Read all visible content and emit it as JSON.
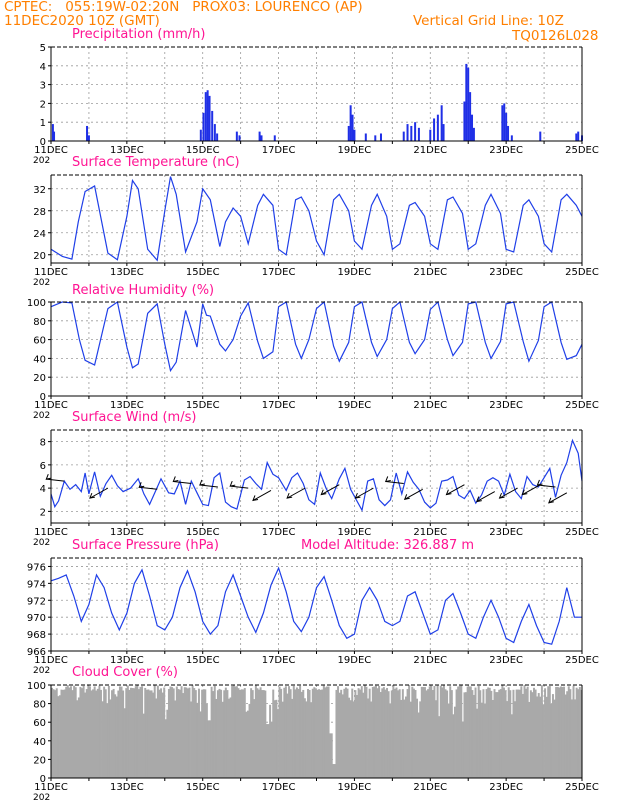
{
  "header": {
    "left_line1": "CPTEC:   055:19W-02:20N   PROX03: LOURENCO (AP)",
    "left_line2": "11DEC2020 10Z (GMT)",
    "right_line2": "Vertical Grid Line: 10Z",
    "right_line3": "TQ0126L028"
  },
  "panels": {
    "precip_title": "Precipitation (mm/h)",
    "temp_title": "Surface Temperature (nC)",
    "rh_title": "Relative Humidity (%)",
    "wind_title": "Surface Wind (m/s)",
    "pres_title": "Surface Pressure (hPa)",
    "model_altitude": "Model Altitude: 326.887 m",
    "cloud_title": "Cloud Cover (%)"
  },
  "x_axis": {
    "labels": [
      "11DEC",
      "13DEC",
      "15DEC",
      "17DEC",
      "19DEC",
      "21DEC",
      "23DEC",
      "25DEC"
    ],
    "year_fragment": "202"
  },
  "colors": {
    "line": "#1f3fe8",
    "bar": "#1f2fe6",
    "cloud": "#a9a9a9",
    "grid": "#9a9a9a",
    "title": "#ff1493",
    "header": "#ff7f00"
  },
  "chart_data": [
    {
      "type": "bar",
      "title": "Precipitation (mm/h)",
      "ylim": [
        0,
        5
      ],
      "yticks": [
        "0",
        "1",
        "2",
        "3",
        "4",
        "5"
      ],
      "x_unit": "days since 11DEC2020 10Z",
      "events": [
        [
          0.05,
          0.9
        ],
        [
          0.08,
          0.5
        ],
        [
          0.95,
          0.8
        ],
        [
          1.0,
          0.3
        ],
        [
          3.95,
          0.6
        ],
        [
          4.02,
          1.5
        ],
        [
          4.08,
          2.6
        ],
        [
          4.13,
          2.7
        ],
        [
          4.18,
          2.4
        ],
        [
          4.25,
          1.6
        ],
        [
          4.32,
          0.9
        ],
        [
          4.38,
          0.4
        ],
        [
          4.9,
          0.5
        ],
        [
          4.97,
          0.3
        ],
        [
          5.5,
          0.5
        ],
        [
          5.55,
          0.3
        ],
        [
          5.9,
          0.3
        ],
        [
          7.85,
          0.8
        ],
        [
          7.9,
          1.9
        ],
        [
          7.95,
          1.4
        ],
        [
          8.0,
          0.6
        ],
        [
          8.3,
          0.4
        ],
        [
          8.55,
          0.3
        ],
        [
          8.7,
          0.4
        ],
        [
          9.3,
          0.5
        ],
        [
          9.4,
          0.9
        ],
        [
          9.5,
          0.8
        ],
        [
          9.6,
          1.0
        ],
        [
          9.7,
          0.7
        ],
        [
          10.0,
          0.6
        ],
        [
          10.1,
          1.2
        ],
        [
          10.2,
          1.4
        ],
        [
          10.3,
          1.9
        ],
        [
          10.35,
          0.9
        ],
        [
          10.9,
          2.1
        ],
        [
          10.95,
          4.1
        ],
        [
          11.0,
          3.9
        ],
        [
          11.05,
          2.6
        ],
        [
          11.1,
          1.4
        ],
        [
          11.15,
          0.7
        ],
        [
          11.9,
          1.9
        ],
        [
          11.95,
          2.0
        ],
        [
          12.0,
          1.5
        ],
        [
          12.05,
          0.8
        ],
        [
          12.15,
          0.3
        ],
        [
          12.9,
          0.5
        ],
        [
          13.85,
          0.4
        ],
        [
          13.9,
          0.5
        ],
        [
          14.0,
          0.3
        ]
      ]
    },
    {
      "type": "line",
      "title": "Surface Temperature (nC)",
      "ylim": [
        18.5,
        34.5
      ],
      "yticks": [
        "20",
        "24",
        "28",
        "32"
      ],
      "x_unit": "days since 11DEC2020 10Z",
      "x": [
        0,
        0.3,
        0.55,
        0.72,
        0.9,
        1.15,
        1.5,
        1.75,
        2.0,
        2.15,
        2.3,
        2.55,
        2.8,
        3.0,
        3.15,
        3.3,
        3.55,
        3.85,
        4.0,
        4.2,
        4.45,
        4.6,
        4.8,
        5.0,
        5.2,
        5.45,
        5.6,
        5.85,
        6.0,
        6.2,
        6.45,
        6.6,
        6.8,
        7.0,
        7.2,
        7.45,
        7.6,
        7.85,
        8.0,
        8.2,
        8.45,
        8.6,
        8.85,
        9.0,
        9.2,
        9.45,
        9.6,
        9.85,
        10.0,
        10.2,
        10.45,
        10.6,
        10.85,
        11.0,
        11.2,
        11.45,
        11.6,
        11.85,
        12.0,
        12.2,
        12.45,
        12.6,
        12.85,
        13.0,
        13.2,
        13.45,
        13.6,
        13.85,
        14.0
      ],
      "values": [
        21.0,
        19.7,
        19.2,
        26.0,
        31.5,
        32.5,
        20.3,
        19.1,
        27.0,
        33.5,
        32.0,
        21.0,
        19.0,
        28.0,
        34.2,
        31.0,
        20.5,
        26.0,
        32.0,
        30.0,
        21.5,
        26.0,
        28.5,
        27.0,
        22.0,
        29.0,
        31.0,
        29.0,
        21.0,
        20.0,
        30.0,
        30.5,
        28.0,
        22.5,
        20.0,
        30.0,
        31.0,
        28.0,
        22.5,
        21.0,
        29.0,
        31.0,
        27.0,
        21.0,
        22.0,
        29.0,
        29.5,
        27.0,
        22.0,
        21.0,
        30.0,
        30.5,
        27.5,
        21.0,
        22.0,
        29.0,
        31.0,
        27.5,
        21.0,
        20.5,
        29.0,
        30.0,
        27.0,
        22.0,
        20.5,
        30.0,
        31.0,
        29.0,
        27.0
      ]
    },
    {
      "type": "line",
      "title": "Relative Humidity (%)",
      "ylim": [
        0,
        100
      ],
      "yticks": [
        "0",
        "20",
        "40",
        "60",
        "80",
        "100"
      ],
      "x_unit": "days since 11DEC2020 10Z",
      "x": [
        0,
        0.3,
        0.55,
        0.75,
        0.9,
        1.15,
        1.5,
        1.75,
        2.0,
        2.15,
        2.3,
        2.55,
        2.8,
        3.0,
        3.15,
        3.3,
        3.55,
        3.85,
        4.0,
        4.1,
        4.2,
        4.45,
        4.6,
        4.8,
        5.0,
        5.2,
        5.45,
        5.6,
        5.85,
        6.0,
        6.2,
        6.45,
        6.6,
        6.8,
        7.0,
        7.2,
        7.45,
        7.6,
        7.85,
        8.0,
        8.2,
        8.45,
        8.6,
        8.85,
        9.0,
        9.2,
        9.45,
        9.6,
        9.85,
        10.0,
        10.2,
        10.45,
        10.6,
        10.85,
        11.0,
        11.2,
        11.45,
        11.6,
        11.85,
        12.0,
        12.2,
        12.45,
        12.6,
        12.85,
        13.0,
        13.2,
        13.45,
        13.6,
        13.85,
        14.0
      ],
      "values": [
        95,
        100,
        99,
        60,
        38,
        33,
        93,
        100,
        52,
        30,
        34,
        88,
        98,
        55,
        27,
        36,
        91,
        52,
        98,
        86,
        85,
        55,
        48,
        60,
        85,
        99,
        58,
        40,
        47,
        95,
        100,
        55,
        40,
        60,
        93,
        100,
        53,
        37,
        57,
        95,
        100,
        57,
        42,
        60,
        93,
        100,
        57,
        45,
        60,
        92,
        100,
        60,
        43,
        57,
        98,
        100,
        57,
        40,
        58,
        98,
        100,
        58,
        37,
        59,
        95,
        100,
        57,
        39,
        43,
        55
      ]
    },
    {
      "type": "line",
      "title": "Surface Wind (m/s)",
      "ylim": [
        1,
        9
      ],
      "yticks": [
        "2",
        "4",
        "6",
        "8"
      ],
      "x_unit": "days since 11DEC2020 10Z",
      "x": [
        0,
        0.1,
        0.2,
        0.35,
        0.5,
        0.65,
        0.8,
        0.9,
        1.0,
        1.15,
        1.3,
        1.45,
        1.6,
        1.75,
        1.9,
        2.1,
        2.3,
        2.45,
        2.6,
        2.75,
        2.9,
        3.1,
        3.25,
        3.4,
        3.55,
        3.7,
        3.85,
        4.0,
        4.15,
        4.3,
        4.45,
        4.6,
        4.75,
        4.9,
        5.1,
        5.25,
        5.4,
        5.55,
        5.7,
        5.85,
        6.0,
        6.2,
        6.35,
        6.5,
        6.65,
        6.8,
        6.95,
        7.1,
        7.25,
        7.4,
        7.6,
        7.75,
        7.9,
        8.05,
        8.2,
        8.35,
        8.5,
        8.65,
        8.8,
        8.95,
        9.1,
        9.25,
        9.4,
        9.55,
        9.7,
        9.85,
        10.0,
        10.15,
        10.3,
        10.45,
        10.6,
        10.75,
        10.9,
        11.05,
        11.2,
        11.35,
        11.5,
        11.65,
        11.8,
        11.95,
        12.1,
        12.25,
        12.4,
        12.55,
        12.7,
        12.85,
        13.0,
        13.15,
        13.3,
        13.45,
        13.6,
        13.75,
        13.9,
        14.0
      ],
      "values": [
        3.5,
        2.4,
        2.9,
        4.6,
        3.9,
        4.3,
        3.7,
        5.3,
        3.5,
        5.4,
        3.3,
        4.4,
        5.1,
        4.2,
        3.7,
        4.0,
        4.8,
        3.5,
        2.6,
        3.7,
        4.8,
        3.6,
        3.5,
        4.6,
        2.6,
        4.6,
        3.6,
        2.6,
        2.5,
        4.9,
        5.3,
        2.8,
        2.4,
        2.2,
        4.7,
        5.0,
        4.4,
        3.9,
        6.2,
        5.2,
        4.9,
        3.8,
        4.9,
        5.3,
        4.4,
        3.0,
        2.6,
        5.3,
        4.0,
        3.1,
        4.8,
        5.7,
        3.9,
        3.0,
        2.1,
        4.6,
        4.8,
        3.0,
        2.5,
        3.0,
        5.3,
        3.5,
        5.4,
        4.5,
        3.9,
        2.8,
        2.3,
        2.7,
        4.6,
        4.7,
        5.0,
        3.4,
        3.1,
        3.8,
        2.7,
        3.4,
        4.6,
        4.9,
        4.6,
        3.4,
        5.2,
        3.7,
        3.1,
        5.0,
        4.3,
        4.1,
        4.9,
        5.7,
        3.2,
        5.1,
        6.2,
        8.1,
        7.0,
        4.6
      ]
    },
    {
      "type": "line",
      "title": "Surface Pressure (hPa)",
      "ylim": [
        966,
        977
      ],
      "yticks": [
        "966",
        "968",
        "970",
        "972",
        "974",
        "976"
      ],
      "x_unit": "days since 11DEC2020 10Z",
      "x": [
        0,
        0.2,
        0.4,
        0.6,
        0.8,
        1.0,
        1.2,
        1.4,
        1.6,
        1.8,
        2.0,
        2.2,
        2.4,
        2.6,
        2.8,
        3.0,
        3.2,
        3.4,
        3.6,
        3.8,
        4.0,
        4.2,
        4.4,
        4.6,
        4.8,
        5.0,
        5.2,
        5.4,
        5.6,
        5.8,
        6.0,
        6.2,
        6.4,
        6.6,
        6.8,
        7.0,
        7.2,
        7.4,
        7.6,
        7.8,
        8.0,
        8.2,
        8.4,
        8.6,
        8.8,
        9.0,
        9.2,
        9.4,
        9.6,
        9.8,
        10.0,
        10.2,
        10.4,
        10.6,
        10.8,
        11.0,
        11.2,
        11.4,
        11.6,
        11.8,
        12.0,
        12.2,
        12.4,
        12.6,
        12.8,
        13.0,
        13.2,
        13.4,
        13.6,
        13.8,
        14.0
      ],
      "values": [
        974.3,
        974.6,
        975.0,
        972.5,
        969.5,
        971.5,
        975.0,
        973.5,
        970.5,
        968.5,
        970.5,
        974.0,
        975.6,
        972.5,
        969.0,
        968.5,
        970.0,
        973.5,
        975.5,
        973.0,
        969.5,
        968.0,
        969.0,
        973.0,
        975.0,
        972.5,
        970.0,
        968.2,
        970.5,
        973.8,
        975.8,
        973.0,
        969.5,
        968.3,
        970.0,
        973.5,
        974.8,
        972.0,
        969.0,
        967.5,
        968.0,
        972.0,
        973.5,
        972.0,
        969.5,
        969.0,
        969.5,
        972.5,
        973.0,
        970.5,
        968.0,
        968.5,
        972.0,
        972.8,
        970.5,
        968.0,
        967.5,
        970.0,
        972.0,
        970.0,
        967.5,
        967.0,
        969.5,
        971.5,
        969.0,
        967.0,
        966.8,
        969.5,
        973.5,
        970.0,
        970.0
      ]
    },
    {
      "type": "bar",
      "title": "Cloud Cover (%)",
      "ylim": [
        0,
        100
      ],
      "yticks": [
        "0",
        "20",
        "40",
        "60",
        "80",
        "100"
      ],
      "note": "near-continuous hourly cloud cover, mostly 80-100%"
    }
  ]
}
